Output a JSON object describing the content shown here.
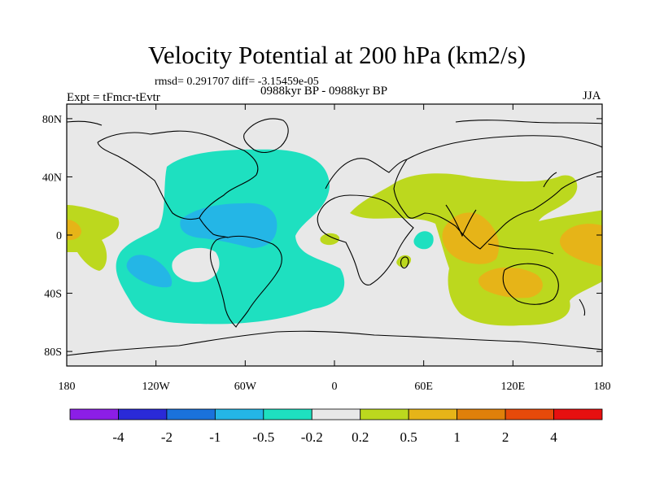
{
  "title": "Velocity Potential at 200 hPa (km2/s)",
  "stats_line": "rmsd= 0.291707 diff= -3.15459e-05",
  "experiment": "Expt = tFmcr-tEvtr",
  "period": "0988kyr BP - 0988kyr BP",
  "season": "JJA",
  "lat_labels": [
    "80N",
    "40N",
    "0",
    "40S",
    "80S"
  ],
  "lon_labels": [
    "180",
    "120W",
    "60W",
    "0",
    "60E",
    "120E",
    "180"
  ],
  "colorbar": {
    "labels": [
      "-4",
      "-2",
      "-1",
      "-0.5",
      "-0.2",
      "0.2",
      "0.5",
      "1",
      "2",
      "4"
    ],
    "colors": [
      "#8c1ee6",
      "#2a2ad8",
      "#1a72dc",
      "#24b6e6",
      "#1ee0c0",
      "#e8e8e8",
      "#bcd81e",
      "#e6b418",
      "#e0800a",
      "#e64a0a",
      "#e61010"
    ]
  },
  "fill_colors": {
    "ocean_bg": "#e8e8e8",
    "neg_light": "#1ee0c0",
    "neg_mid": "#24b6e6",
    "pos_light": "#bcd81e",
    "pos_mid": "#e6b418"
  }
}
